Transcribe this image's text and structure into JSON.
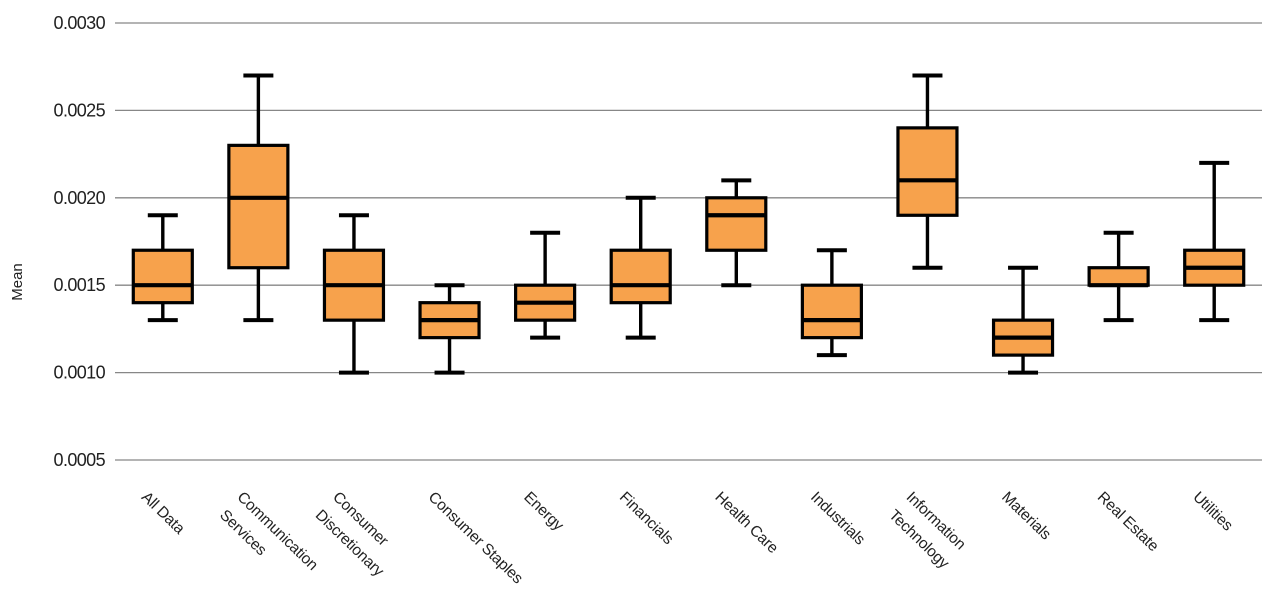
{
  "chart_data": {
    "type": "boxplot",
    "title": "",
    "xlabel": "",
    "ylabel": "Mean",
    "ylim": [
      0.0005,
      0.003
    ],
    "grid": true,
    "legend": false,
    "colors": {
      "box_fill": "#F7A24C",
      "box_edge": "#000000",
      "median": "#000000",
      "whisker": "#000000",
      "gridline": "#878787",
      "text": "#212121"
    },
    "yticks": [
      {
        "value": 0.0005,
        "label": "0.0005"
      },
      {
        "value": 0.001,
        "label": "0.0010"
      },
      {
        "value": 0.0015,
        "label": "0.0015"
      },
      {
        "value": 0.002,
        "label": "0.0020"
      },
      {
        "value": 0.0025,
        "label": "0.0025"
      },
      {
        "value": 0.003,
        "label": "0.0030"
      }
    ],
    "categories": [
      "All Data",
      "Communication Services",
      "Consumer Discretionary",
      "Consumer Staples",
      "Energy",
      "Financials",
      "Health Care",
      "Industrials",
      "Information Technology",
      "Materials",
      "Real Estate",
      "Utilities"
    ],
    "boxes": [
      {
        "category": "All Data",
        "label_lines": [
          "All Data"
        ],
        "whisker_low": 0.0013,
        "q1": 0.0014,
        "median": 0.0015,
        "q3": 0.0017,
        "whisker_high": 0.0019
      },
      {
        "category": "Communication Services",
        "label_lines": [
          "Communication",
          "Services"
        ],
        "whisker_low": 0.0013,
        "q1": 0.0016,
        "median": 0.002,
        "q3": 0.0023,
        "whisker_high": 0.0027
      },
      {
        "category": "Consumer Discretionary",
        "label_lines": [
          "Consumer",
          "Discretionary"
        ],
        "whisker_low": 0.001,
        "q1": 0.0013,
        "median": 0.0015,
        "q3": 0.0017,
        "whisker_high": 0.0019
      },
      {
        "category": "Consumer Staples",
        "label_lines": [
          "Consumer Staples"
        ],
        "whisker_low": 0.001,
        "q1": 0.0012,
        "median": 0.0013,
        "q3": 0.0014,
        "whisker_high": 0.0015
      },
      {
        "category": "Energy",
        "label_lines": [
          "Energy"
        ],
        "whisker_low": 0.0012,
        "q1": 0.0013,
        "median": 0.0014,
        "q3": 0.0015,
        "whisker_high": 0.0018
      },
      {
        "category": "Financials",
        "label_lines": [
          "Financials"
        ],
        "whisker_low": 0.0012,
        "q1": 0.0014,
        "median": 0.0015,
        "q3": 0.0017,
        "whisker_high": 0.002
      },
      {
        "category": "Health Care",
        "label_lines": [
          "Health Care"
        ],
        "whisker_low": 0.0015,
        "q1": 0.0017,
        "median": 0.0019,
        "q3": 0.002,
        "whisker_high": 0.0021
      },
      {
        "category": "Industrials",
        "label_lines": [
          "Industrials"
        ],
        "whisker_low": 0.0011,
        "q1": 0.0012,
        "median": 0.0013,
        "q3": 0.0015,
        "whisker_high": 0.0017
      },
      {
        "category": "Information Technology",
        "label_lines": [
          "Information",
          "Technology"
        ],
        "whisker_low": 0.0016,
        "q1": 0.0019,
        "median": 0.0021,
        "q3": 0.0024,
        "whisker_high": 0.0027
      },
      {
        "category": "Materials",
        "label_lines": [
          "Materials"
        ],
        "whisker_low": 0.001,
        "q1": 0.0011,
        "median": 0.0012,
        "q3": 0.0013,
        "whisker_high": 0.0016
      },
      {
        "category": "Real Estate",
        "label_lines": [
          "Real Estate"
        ],
        "whisker_low": 0.0013,
        "q1": 0.0015,
        "median": 0.0015,
        "q3": 0.0016,
        "whisker_high": 0.0018
      },
      {
        "category": "Utilities",
        "label_lines": [
          "Utilities"
        ],
        "whisker_low": 0.0013,
        "q1": 0.0015,
        "median": 0.0016,
        "q3": 0.0017,
        "whisker_high": 0.0022
      }
    ]
  }
}
